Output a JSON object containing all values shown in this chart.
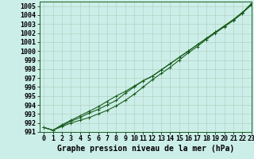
{
  "xlabel": "Graphe pression niveau de la mer (hPa)",
  "ylim": [
    991.0,
    1005.5
  ],
  "xlim": [
    -0.5,
    23
  ],
  "yticks": [
    991,
    992,
    993,
    994,
    995,
    996,
    997,
    998,
    999,
    1000,
    1001,
    1002,
    1003,
    1004,
    1005
  ],
  "xticks": [
    0,
    1,
    2,
    3,
    4,
    5,
    6,
    7,
    8,
    9,
    10,
    11,
    12,
    13,
    14,
    15,
    16,
    17,
    18,
    19,
    20,
    21,
    22,
    23
  ],
  "bg_color": "#cceee8",
  "grid_color": "#aaccbb",
  "line_color": "#1a5e20",
  "series": [
    [
      991.5,
      991.2,
      991.6,
      992.0,
      992.3,
      992.6,
      993.0,
      993.4,
      993.9,
      994.5,
      995.2,
      996.0,
      996.8,
      997.5,
      998.2,
      999.0,
      999.8,
      1000.5,
      1001.3,
      1002.0,
      1002.7,
      1003.4,
      1004.2,
      1005.2
    ],
    [
      991.5,
      991.2,
      991.7,
      992.2,
      992.6,
      993.1,
      993.5,
      994.0,
      994.5,
      995.3,
      996.0,
      996.7,
      997.2,
      997.9,
      998.6,
      999.3,
      1000.0,
      1000.7,
      1001.4,
      1002.1,
      1002.8,
      1003.5,
      1004.3,
      1005.1
    ],
    [
      991.5,
      991.2,
      991.8,
      992.3,
      992.8,
      993.3,
      993.8,
      994.4,
      995.0,
      995.5,
      996.1,
      996.7,
      997.2,
      997.9,
      998.6,
      999.3,
      1000.0,
      1000.7,
      1001.4,
      1002.1,
      1002.8,
      1003.5,
      1004.3,
      1005.3
    ]
  ],
  "title_fontsize": 7,
  "tick_fontsize": 6,
  "line_width": 0.8,
  "marker_size": 3.0
}
